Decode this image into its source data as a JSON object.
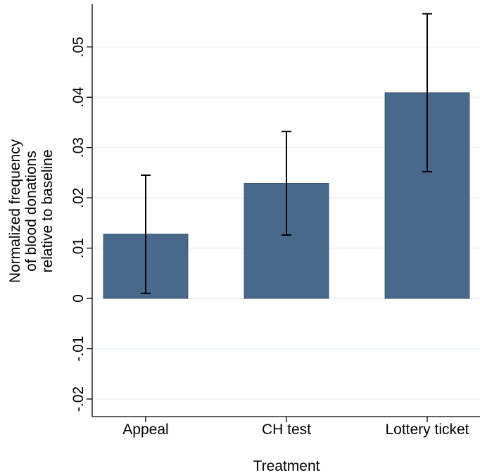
{
  "chart_data": {
    "type": "bar",
    "categories": [
      "Appeal",
      "CH test",
      "Lottery ticket"
    ],
    "values": [
      0.0128,
      0.0229,
      0.0409
    ],
    "error_bars": [
      {
        "low": 0.001,
        "high": 0.0245
      },
      {
        "low": 0.0126,
        "high": 0.0332
      },
      {
        "low": 0.0252,
        "high": 0.0566
      }
    ],
    "xlabel": "Treatment",
    "ylabel_lines": [
      "Normalized frequency",
      "of blood donations",
      "relative to baseline"
    ],
    "yticks": [
      -0.02,
      -0.01,
      0,
      0.01,
      0.02,
      0.03,
      0.04,
      0.05
    ],
    "ytick_labels": [
      "-.02",
      "-.01",
      "0",
      ".01",
      ".02",
      ".03",
      ".04",
      ".05"
    ],
    "ylim": [
      -0.0235,
      0.0585
    ],
    "grid": true,
    "colors": {
      "bar": "#48698c",
      "gridline": "#eaf2f3",
      "axis": "#000000",
      "errorbar": "#000000"
    }
  }
}
